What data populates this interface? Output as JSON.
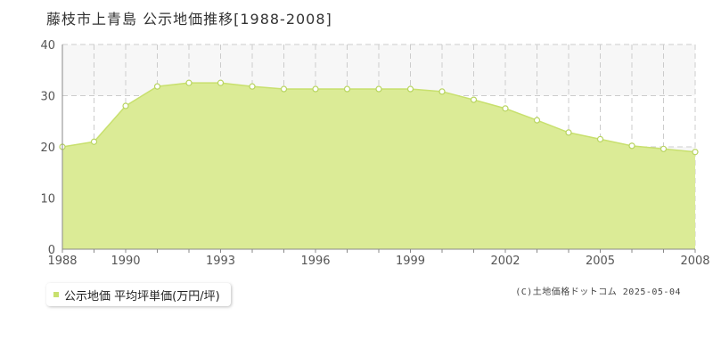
{
  "title": "藤枝市上青島 公示地価推移[1988-2008]",
  "legend": {
    "label": "公示地価 平均坪単価(万円/坪)"
  },
  "copyright": "(C)土地価格ドットコム 2025-05-04",
  "colors": {
    "fill": "#dbeb96",
    "line": "#c8e06e",
    "marker_edge": "#b8d460",
    "band": "#f7f7f7",
    "grid": "#cccccc",
    "axis": "#888888"
  },
  "chart_data": {
    "type": "area",
    "title": "藤枝市上青島 公示地価推移[1988-2008]",
    "xlabel": "",
    "ylabel": "",
    "x": [
      1988,
      1989,
      1990,
      1991,
      1992,
      1993,
      1994,
      1995,
      1996,
      1997,
      1998,
      1999,
      2000,
      2001,
      2002,
      2003,
      2004,
      2005,
      2006,
      2007,
      2008
    ],
    "series": [
      {
        "name": "公示地価 平均坪単価(万円/坪)",
        "values": [
          20.0,
          21.0,
          28.0,
          31.8,
          32.5,
          32.5,
          31.8,
          31.3,
          31.3,
          31.3,
          31.3,
          31.3,
          30.8,
          29.2,
          27.5,
          25.2,
          22.8,
          21.5,
          20.2,
          19.6,
          19.0
        ]
      }
    ],
    "xlim": [
      1988,
      2008
    ],
    "ylim": [
      0,
      40
    ],
    "yticks": [
      0,
      10,
      20,
      30,
      40
    ],
    "xtick_labels": [
      "1988",
      "1990",
      "1993",
      "1996",
      "1999",
      "2002",
      "2005",
      "2008"
    ],
    "grid": true
  }
}
